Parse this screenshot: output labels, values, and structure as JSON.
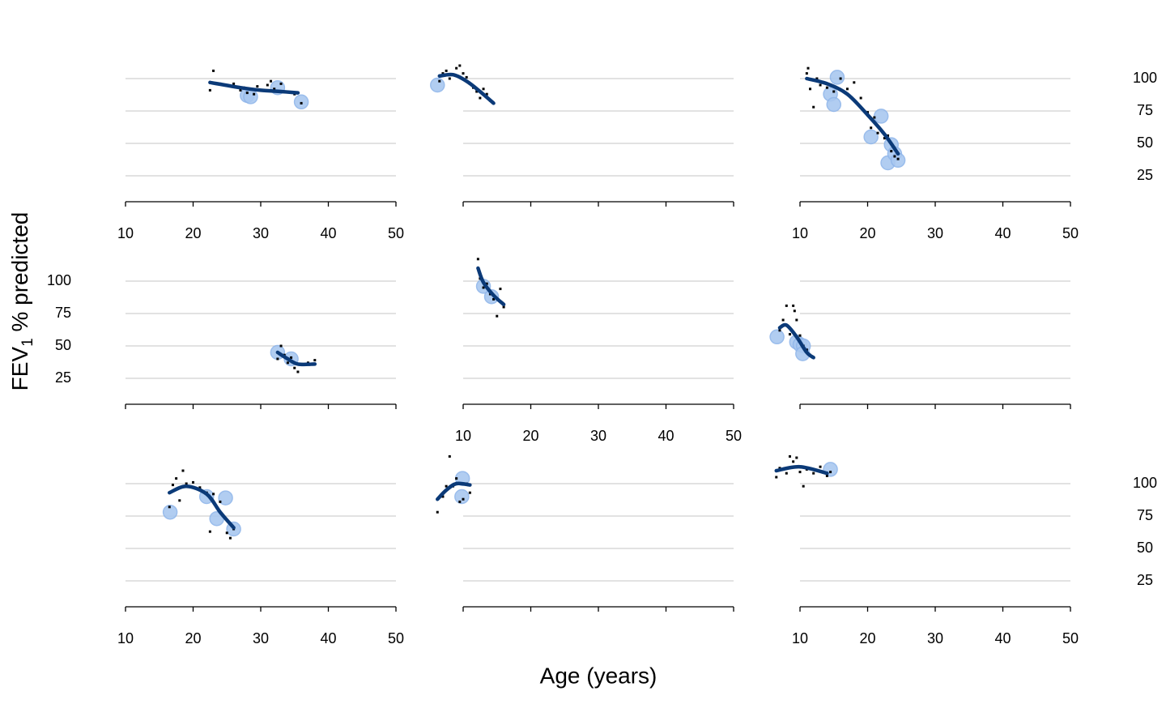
{
  "chart_data": {
    "type": "facet-scatter",
    "x_label": "Age (years)",
    "y_label": {
      "main": "FEV",
      "sub": "1",
      "rest": " % predicted"
    },
    "xlim": [
      10,
      50
    ],
    "xticks": [
      10,
      20,
      30,
      40,
      50
    ],
    "ylim": [
      5,
      115
    ],
    "yticks": [
      25,
      50,
      75,
      100
    ],
    "grid": true,
    "point_color": "#000000",
    "smooth_color": "#0b3a78",
    "highlight_color": "#a9c8f0",
    "panels": [
      {
        "points": {
          "x": [
            22.5,
            23,
            24,
            25,
            26,
            27,
            27.5,
            28,
            29,
            29.5,
            30,
            31,
            31.5,
            32,
            33,
            34,
            35,
            36
          ],
          "y": [
            91,
            106,
            96,
            95,
            96,
            91,
            93,
            89,
            88,
            94,
            91,
            95,
            98,
            92,
            96,
            90,
            88,
            81
          ]
        },
        "smooth": {
          "x": [
            22.5,
            27,
            30,
            33,
            35.5
          ],
          "y": [
            97,
            93,
            91,
            90,
            89
          ]
        },
        "highlight": {
          "x": [
            28,
            28.5,
            32.5,
            36
          ],
          "y": [
            87,
            86,
            93,
            82
          ]
        }
      },
      {
        "points": {
          "x": [
            6.5,
            7,
            7.5,
            8,
            8.5,
            9,
            9.5,
            10,
            10.5,
            11,
            11.5,
            12,
            12.5,
            13,
            13.5,
            14
          ],
          "y": [
            98,
            104,
            106,
            100,
            103,
            108,
            110,
            104,
            101,
            96,
            93,
            90,
            85,
            92,
            88,
            83
          ]
        },
        "smooth": {
          "x": [
            6.5,
            8.5,
            10.5,
            12.5,
            14.5
          ],
          "y": [
            102,
            103,
            98,
            90,
            81
          ]
        },
        "highlight": {
          "x": [
            6.2
          ],
          "y": [
            95
          ]
        }
      },
      {
        "points": {
          "x": [
            11,
            11.2,
            11.5,
            12,
            12.5,
            13,
            14,
            15,
            16,
            17,
            18,
            19,
            20,
            20.5,
            21,
            21.5,
            22,
            22.5,
            23,
            23.5,
            24,
            24.5
          ],
          "y": [
            104,
            108,
            92,
            78,
            100,
            95,
            93,
            90,
            100,
            92,
            97,
            85,
            74,
            62,
            70,
            58,
            60,
            54,
            56,
            44,
            40,
            38
          ]
        },
        "smooth": {
          "x": [
            11,
            14,
            17,
            20,
            22.5,
            24.5
          ],
          "y": [
            100,
            96,
            88,
            72,
            57,
            42
          ]
        },
        "highlight": {
          "x": [
            14.5,
            15,
            15.5,
            20.5,
            22,
            23,
            23.5,
            24,
            24.5
          ],
          "y": [
            88,
            80,
            101,
            55,
            71,
            35,
            49,
            42,
            37
          ]
        }
      },
      {
        "points": {
          "x": [
            32.5,
            33,
            33.5,
            34,
            34.5,
            35,
            35.5,
            36,
            37,
            38
          ],
          "y": [
            40,
            50,
            43,
            37,
            41,
            33,
            30,
            36,
            37,
            39
          ]
        },
        "smooth": {
          "x": [
            32.5,
            34,
            35.5,
            38
          ],
          "y": [
            45,
            40,
            36,
            36
          ]
        },
        "highlight": {
          "x": [
            32.5,
            34.5
          ],
          "y": [
            45,
            40
          ]
        }
      },
      {
        "points": {
          "x": [
            12.2,
            12.5,
            13,
            13.5,
            14,
            14.5,
            15,
            15.5,
            16
          ],
          "y": [
            117,
            102,
            95,
            98,
            90,
            86,
            73,
            94,
            80
          ]
        },
        "smooth": {
          "x": [
            12.2,
            13,
            14.5,
            16
          ],
          "y": [
            110,
            99,
            89,
            82
          ]
        },
        "highlight": {
          "x": [
            13,
            14.2
          ],
          "y": [
            96,
            88
          ]
        }
      },
      {
        "points": {
          "x": [
            7,
            7.5,
            8,
            8.5,
            9,
            9.2,
            9.5,
            10,
            10.5,
            11,
            11.5
          ],
          "y": [
            62,
            70,
            81,
            59,
            81,
            77,
            70,
            58,
            50,
            47,
            43
          ]
        },
        "smooth": {
          "x": [
            7,
            8,
            9.5,
            11,
            12
          ],
          "y": [
            64,
            66,
            57,
            45,
            41
          ]
        },
        "highlight": {
          "x": [
            6.6,
            9.5,
            10,
            10.5,
            10.4
          ],
          "y": [
            57,
            53,
            51,
            50,
            44
          ]
        }
      },
      {
        "points": {
          "x": [
            16.5,
            17,
            17.5,
            18,
            18.5,
            19,
            20,
            21,
            22,
            22.5,
            23,
            24,
            25,
            25.5,
            26
          ],
          "y": [
            82,
            99,
            104,
            87,
            110,
            100,
            101,
            97,
            93,
            63,
            92,
            86,
            62,
            58,
            65
          ]
        },
        "smooth": {
          "x": [
            16.5,
            19,
            22,
            24,
            26
          ],
          "y": [
            93,
            98,
            92,
            78,
            66
          ]
        },
        "highlight": {
          "x": [
            16.6,
            22,
            23.5,
            24.8,
            26
          ],
          "y": [
            78,
            90,
            73,
            89,
            65
          ]
        }
      },
      {
        "points": {
          "x": [
            6.2,
            7,
            7.5,
            8,
            8.5,
            9,
            9.5,
            10,
            10.5,
            11
          ],
          "y": [
            78,
            90,
            98,
            121,
            98,
            104,
            86,
            88,
            100,
            93
          ]
        },
        "smooth": {
          "x": [
            6.2,
            7.5,
            9,
            11
          ],
          "y": [
            88,
            95,
            100,
            99
          ]
        },
        "highlight": {
          "x": [
            9.8,
            9.9
          ],
          "y": [
            90,
            104
          ]
        }
      },
      {
        "points": {
          "x": [
            6.5,
            7,
            8,
            8.5,
            9,
            9.5,
            10,
            10.5,
            11,
            12,
            13,
            14,
            14.5
          ],
          "y": [
            105,
            112,
            108,
            121,
            117,
            120,
            109,
            98,
            111,
            108,
            113,
            106,
            109
          ]
        },
        "smooth": {
          "x": [
            6.5,
            10,
            14
          ],
          "y": [
            110,
            113,
            108
          ]
        },
        "highlight": {
          "x": [
            14.5
          ],
          "y": [
            111
          ]
        }
      }
    ]
  }
}
